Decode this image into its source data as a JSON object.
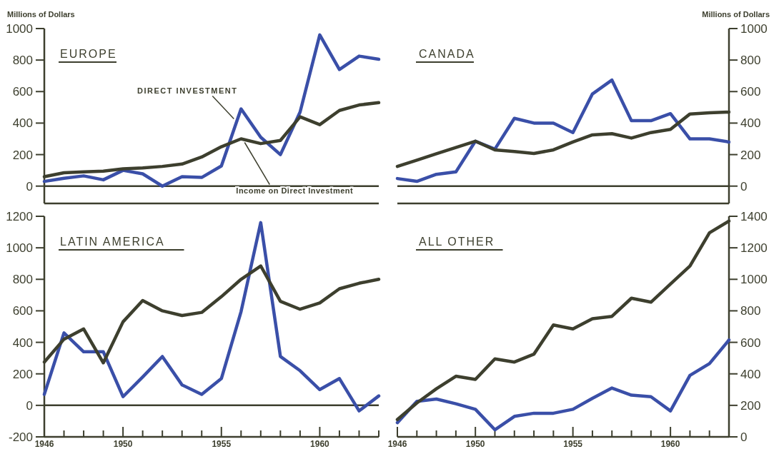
{
  "chart_data": [
    {
      "type": "line",
      "title": "EUROPE",
      "ylabel": "Millions of Dollars",
      "x": [
        1946,
        1947,
        1948,
        1949,
        1950,
        1951,
        1952,
        1953,
        1954,
        1955,
        1956,
        1957,
        1958,
        1959,
        1960,
        1961,
        1962,
        1963
      ],
      "xlim": [
        1946,
        1963
      ],
      "ylim": [
        -110,
        1000
      ],
      "yticks": [
        0,
        200,
        400,
        600,
        800,
        1000
      ],
      "tick_labels": "y",
      "ref_lines": [
        {
          "axis": "y",
          "value": 0
        }
      ],
      "series": [
        {
          "name": "DIRECT INVESTMENT",
          "color": "#3a4fa8",
          "values": [
            30,
            50,
            65,
            40,
            100,
            78,
            0,
            60,
            55,
            128,
            490,
            310,
            200,
            470,
            960,
            740,
            825,
            805
          ]
        },
        {
          "name": "Income on Direct Investment",
          "color": "#3d3f2e",
          "values": [
            60,
            85,
            90,
            95,
            110,
            115,
            125,
            140,
            185,
            250,
            300,
            270,
            290,
            440,
            390,
            480,
            515,
            530
          ]
        }
      ]
    },
    {
      "type": "line",
      "title": "CANADA",
      "y2label": "Millions of Dollars",
      "x": [
        1946,
        1947,
        1948,
        1949,
        1950,
        1951,
        1952,
        1953,
        1954,
        1955,
        1956,
        1957,
        1958,
        1959,
        1960,
        1961,
        1962,
        1963
      ],
      "xlim": [
        1946,
        1963
      ],
      "y2lim": [
        -110,
        1000
      ],
      "y2ticks": [
        0,
        200,
        400,
        600,
        800,
        1000
      ],
      "tick_labels": "y",
      "ref_lines": [
        {
          "axis": "y2",
          "value": 0
        }
      ],
      "series": [
        {
          "color": "#3a4fa8",
          "axis": "y2",
          "values": [
            48,
            30,
            75,
            90,
            285,
            235,
            430,
            400,
            400,
            340,
            585,
            673,
            415,
            415,
            460,
            300,
            300,
            280
          ]
        },
        {
          "color": "#3d3f2e",
          "axis": "y2",
          "values": [
            125,
            165,
            205,
            245,
            285,
            230,
            220,
            207,
            230,
            280,
            325,
            333,
            305,
            340,
            360,
            458,
            465,
            470
          ]
        }
      ]
    },
    {
      "type": "line",
      "title": "LATIN AMERICA",
      "x": [
        1946,
        1947,
        1948,
        1949,
        1950,
        1951,
        1952,
        1953,
        1954,
        1955,
        1956,
        1957,
        1958,
        1959,
        1960,
        1961,
        1962,
        1963
      ],
      "xlim": [
        1946,
        1963
      ],
      "ylim": [
        -200,
        1200
      ],
      "yticks": [
        -200,
        0,
        200,
        400,
        600,
        800,
        1000,
        1200
      ],
      "xticks": [
        1946,
        {
          "value": 1947,
          "label": null
        },
        {
          "value": 1948,
          "label": null
        },
        {
          "value": 1949,
          "label": null
        },
        1950,
        {
          "value": 1951,
          "label": null
        },
        {
          "value": 1952,
          "label": null
        },
        {
          "value": 1953,
          "label": null
        },
        {
          "value": 1954,
          "label": null
        },
        1955,
        {
          "value": 1956,
          "label": null
        },
        {
          "value": 1957,
          "label": null
        },
        {
          "value": 1958,
          "label": null
        },
        {
          "value": 1959,
          "label": null
        },
        1960,
        {
          "value": 1961,
          "label": null
        },
        {
          "value": 1962,
          "label": null
        },
        {
          "value": 1963,
          "label": null
        }
      ],
      "ref_lines": [
        {
          "axis": "y",
          "value": 0
        }
      ],
      "series": [
        {
          "color": "#3a4fa8",
          "values": [
            70,
            460,
            340,
            340,
            55,
            180,
            310,
            130,
            70,
            170,
            595,
            1160,
            310,
            220,
            100,
            170,
            -35,
            60
          ]
        },
        {
          "color": "#3d3f2e",
          "values": [
            275,
            420,
            485,
            270,
            530,
            665,
            600,
            570,
            590,
            690,
            800,
            885,
            660,
            610,
            650,
            740,
            775,
            800
          ]
        }
      ]
    },
    {
      "type": "line",
      "title": "ALL OTHER",
      "x": [
        1946,
        1947,
        1948,
        1949,
        1950,
        1951,
        1952,
        1953,
        1954,
        1955,
        1956,
        1957,
        1958,
        1959,
        1960,
        1961,
        1962,
        1963
      ],
      "xlim": [
        1946,
        1963
      ],
      "y2lim": [
        0,
        1400
      ],
      "y2ticks": [
        0,
        200,
        400,
        600,
        800,
        1000,
        1200,
        1400
      ],
      "xticks": [
        1946,
        {
          "value": 1947,
          "label": null
        },
        {
          "value": 1948,
          "label": null
        },
        {
          "value": 1949,
          "label": null
        },
        1950,
        {
          "value": 1951,
          "label": null
        },
        {
          "value": 1952,
          "label": null
        },
        {
          "value": 1953,
          "label": null
        },
        {
          "value": 1954,
          "label": null
        },
        1955,
        {
          "value": 1956,
          "label": null
        },
        {
          "value": 1957,
          "label": null
        },
        {
          "value": 1958,
          "label": null
        },
        {
          "value": 1959,
          "label": null
        },
        1960,
        {
          "value": 1961,
          "label": null
        },
        {
          "value": 1962,
          "label": null
        },
        {
          "value": 1963,
          "label": null
        }
      ],
      "series": [
        {
          "color": "#3a4fa8",
          "axis": "y2",
          "values": [
            90,
            225,
            240,
            210,
            175,
            45,
            130,
            150,
            150,
            175,
            245,
            310,
            265,
            255,
            165,
            390,
            465,
            615
          ]
        },
        {
          "color": "#3d3f2e",
          "axis": "y2",
          "values": [
            110,
            215,
            305,
            385,
            365,
            495,
            475,
            525,
            710,
            685,
            750,
            765,
            880,
            855,
            970,
            1085,
            1295,
            1370
          ]
        }
      ]
    }
  ]
}
